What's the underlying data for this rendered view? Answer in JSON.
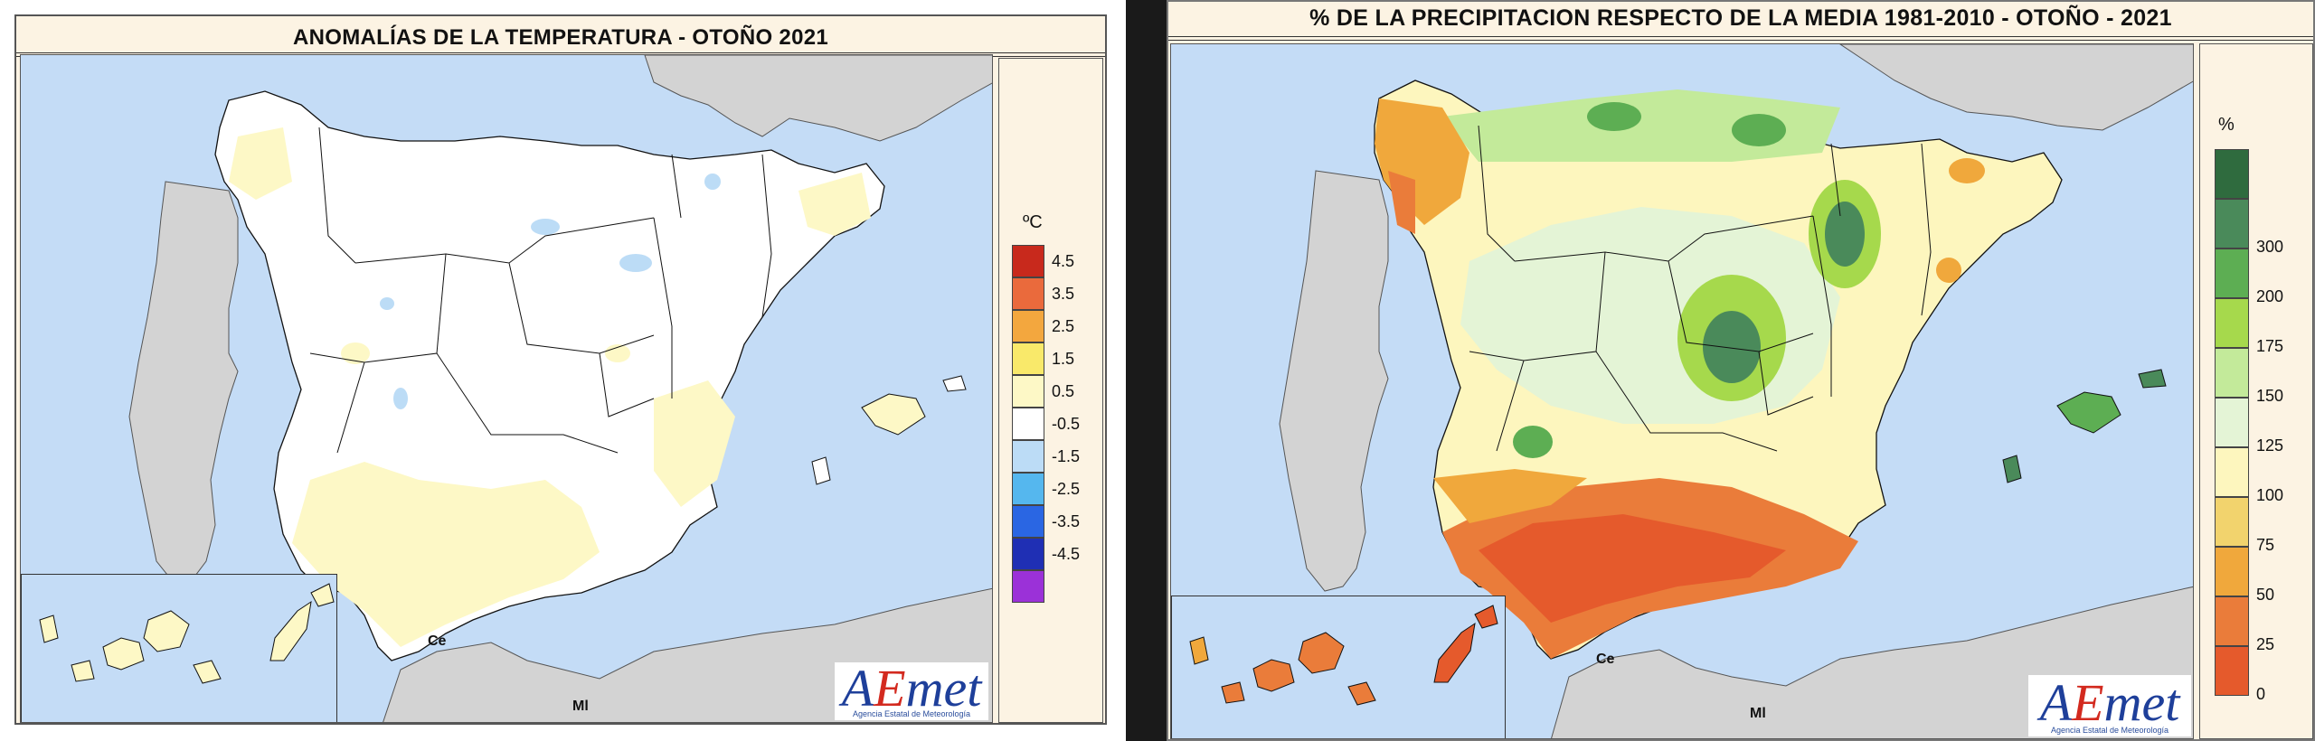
{
  "left_map": {
    "title": "ANOMALÍAS DE LA TEMPERATURA - OTOÑO 2021",
    "unit": "ºC",
    "legend": [
      {
        "label": "4.5",
        "color": "#c8291c"
      },
      {
        "label": "3.5",
        "color": "#ea6a3c"
      },
      {
        "label": "2.5",
        "color": "#f3a73e"
      },
      {
        "label": "1.5",
        "color": "#f9e96a"
      },
      {
        "label": "0.5",
        "color": "#fdf8c6"
      },
      {
        "label": "-0.5",
        "color": "#ffffff"
      },
      {
        "label": "-1.5",
        "color": "#bcdcf6"
      },
      {
        "label": "-2.5",
        "color": "#55b7ee"
      },
      {
        "label": "-3.5",
        "color": "#2a66e3"
      },
      {
        "label": "-4.5",
        "color": "#1f2fb4"
      },
      {
        "label": "",
        "color": "#9b31d8"
      }
    ],
    "places": {
      "ceuta": "Ce",
      "melilla": "Ml"
    },
    "logo": {
      "text_a": "A",
      "text_e": "E",
      "text_met": "met",
      "subtitle": "Agencia Estatal de Meteorología"
    }
  },
  "right_map": {
    "title": "% DE LA PRECIPITACION RESPECTO DE LA MEDIA 1981-2010 - OTOÑO - 2021",
    "unit": "%",
    "legend": [
      {
        "label": "",
        "color": "#2f6b3e"
      },
      {
        "label": "300",
        "color": "#4a8a5a"
      },
      {
        "label": "200",
        "color": "#5dae53"
      },
      {
        "label": "175",
        "color": "#a6d94c"
      },
      {
        "label": "150",
        "color": "#c3ea9a"
      },
      {
        "label": "125",
        "color": "#e4f4d6"
      },
      {
        "label": "100",
        "color": "#fdf6be"
      },
      {
        "label": "75",
        "color": "#f2d36d"
      },
      {
        "label": "50",
        "color": "#f0a83c"
      },
      {
        "label": "25",
        "color": "#ea7c3a"
      },
      {
        "label": "0",
        "color": "#e55a2c"
      }
    ],
    "places": {
      "ceuta": "Ce",
      "melilla": "Ml"
    },
    "logo": {
      "text_a": "A",
      "text_e": "E",
      "text_met": "met",
      "subtitle": "Agencia Estatal de Meteorología"
    }
  }
}
